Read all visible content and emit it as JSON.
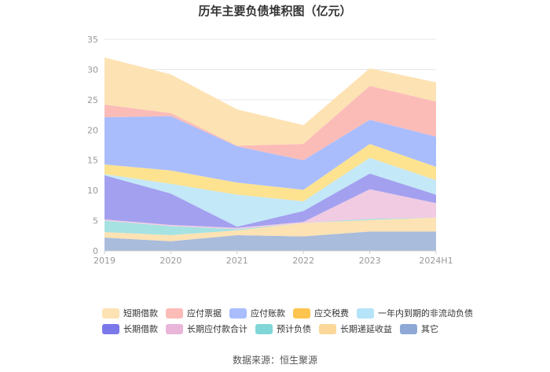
{
  "chart_data": {
    "type": "area",
    "stacked": true,
    "title": "历年主要负债堆积图（亿元）",
    "categories": [
      "2019",
      "2020",
      "2021",
      "2022",
      "2023",
      "2024H1"
    ],
    "ylim": [
      0,
      35
    ],
    "yticks": [
      0,
      5,
      10,
      15,
      20,
      25,
      30,
      35
    ],
    "grid": true,
    "legend_position": "bottom",
    "series": [
      {
        "name": "其它",
        "color": "#a9bcdc",
        "values": [
          2.2,
          1.6,
          2.6,
          2.4,
          3.2,
          3.2
        ]
      },
      {
        "name": "长期递延收益",
        "color": "#fde2b3",
        "values": [
          0.9,
          1.0,
          0.8,
          2.2,
          1.9,
          2.3
        ]
      },
      {
        "name": "预计负债",
        "color": "#a6e2e2",
        "values": [
          1.9,
          1.5,
          0.2,
          0.0,
          0.2,
          0.0
        ]
      },
      {
        "name": "长期应付款合计",
        "color": "#f0cbe2",
        "values": [
          0.2,
          0.2,
          0.2,
          0.2,
          4.9,
          2.4
        ]
      },
      {
        "name": "长期借款",
        "color": "#a3a0f0",
        "values": [
          7.3,
          5.2,
          0.2,
          1.8,
          2.6,
          1.4
        ]
      },
      {
        "name": "一年内到期的非流动负债",
        "color": "#c3e8f7",
        "values": [
          0.2,
          1.6,
          5.3,
          1.6,
          2.6,
          2.4
        ]
      },
      {
        "name": "应交税费",
        "color": "#fde290",
        "values": [
          1.6,
          2.2,
          2.0,
          1.9,
          2.3,
          2.2
        ]
      },
      {
        "name": "应付账款",
        "color": "#a9bdfd",
        "values": [
          7.8,
          9.0,
          6.0,
          4.9,
          4.0,
          5.0
        ]
      },
      {
        "name": "应付票据",
        "color": "#fbbcb8",
        "values": [
          2.1,
          0.5,
          0.1,
          2.7,
          5.6,
          5.8
        ]
      },
      {
        "name": "短期借款",
        "color": "#fde2b3",
        "values": [
          7.8,
          6.4,
          6.0,
          3.1,
          2.9,
          3.2
        ]
      }
    ]
  },
  "legend": {
    "row1": [
      {
        "label": "短期借款",
        "color": "#fde2b3"
      },
      {
        "label": "应付票据",
        "color": "#fbbcb8"
      },
      {
        "label": "应付账款",
        "color": "#a9bdfd"
      },
      {
        "label": "应交税费",
        "color": "#fdc550"
      },
      {
        "label": "一年内到期的非流动负债",
        "color": "#b5e3f8"
      }
    ],
    "row2": [
      {
        "label": "长期借款",
        "color": "#7b78ea"
      },
      {
        "label": "长期应付款合计",
        "color": "#e9b5d9"
      },
      {
        "label": "预计负债",
        "color": "#80d6d6"
      },
      {
        "label": "长期递延收益",
        "color": "#fbd79a"
      },
      {
        "label": "其它",
        "color": "#8ea9d6"
      }
    ]
  },
  "source_text": "数据来源：恒生聚源"
}
